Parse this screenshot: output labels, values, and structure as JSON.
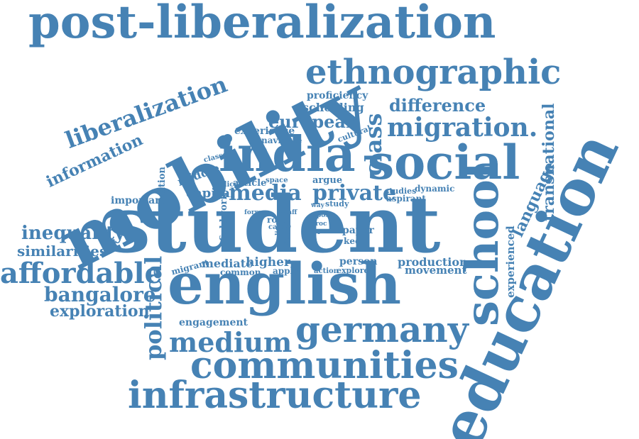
{
  "style": {
    "text_color": "#4682b4",
    "background": "#ffffff"
  },
  "words": {
    "post_liberalization": "post-liberalization",
    "mobility": "mobility",
    "ethnographic": "ethnographic",
    "liberalization": "liberalization",
    "student": "student",
    "english": "english",
    "education": "education",
    "india": "india",
    "social": "social",
    "school": "school",
    "class": "class",
    "migration": "migration.",
    "difference": "difference",
    "european": "european",
    "schooling": "schooling",
    "proficiency": "proficiency",
    "information": "information",
    "germany": "germany",
    "communities": "communities",
    "infrastructure": "infrastructure",
    "medium": "medium",
    "affordable": "affordable",
    "bangalore": "bangalore",
    "exploration": "exploration",
    "inequality": "inequality",
    "similarities": "similarities",
    "political": "political",
    "transnational": "transnational",
    "language": "language",
    "experienced": "experienced",
    "private": "private",
    "media": "media",
    "capital": "capital",
    "middle": "middle",
    "nation": "nation",
    "important": "important",
    "experience": "experience",
    "navigate": "navigate",
    "cultural": "cultural",
    "article": "article",
    "argue": "argue",
    "study": "study",
    "studies": "studies",
    "dynamic": "dynamic",
    "aspirant": "aspirant",
    "policy": "policy",
    "space": "space",
    "classes": "classes",
    "way": "way",
    "post": "post",
    "fieldwork": "fieldwork",
    "role": "role",
    "calm": "calm",
    "form": "form",
    "staff": "staff",
    "line": "line",
    "actor": "actor",
    "proc": "proc",
    "type": "type",
    "paper": "paper",
    "keep": "keep",
    "person": "person",
    "production": "production",
    "movement": "movement",
    "mediate": "mediate",
    "higher": "higher",
    "migrant": "migrant",
    "common": "common",
    "apply": "apply",
    "action": "action",
    "explore": "explore",
    "engagement": "engagement"
  }
}
